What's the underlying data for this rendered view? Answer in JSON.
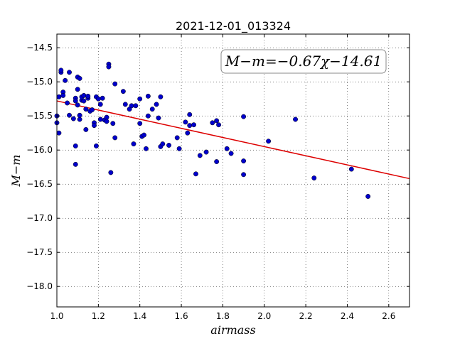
{
  "chart_data": {
    "type": "scatter",
    "title": "2021-12-01_013324",
    "xlabel": "airmass",
    "ylabel": "M−m",
    "xlim": [
      1.0,
      2.7
    ],
    "ylim": [
      -18.3,
      -14.3
    ],
    "y_inverted": true,
    "grid": true,
    "x_ticks": [
      "1.0",
      "1.2",
      "1.4",
      "1.6",
      "1.8",
      "2.0",
      "2.2",
      "2.4",
      "2.6"
    ],
    "y_ticks": [
      "−14.5",
      "−15.0",
      "−15.5",
      "−16.0",
      "−16.5",
      "−17.0",
      "−17.5",
      "−18.0"
    ],
    "annotation": "M−m=−0.67χ−14.61",
    "fit": {
      "slope": -0.67,
      "intercept": -14.61,
      "color": "#dd0000"
    },
    "point_color": "#0000cc",
    "points": [
      [
        1.0,
        -15.5
      ],
      [
        1.0,
        -15.6
      ],
      [
        1.01,
        -15.75
      ],
      [
        1.01,
        -15.22
      ],
      [
        1.02,
        -14.86
      ],
      [
        1.02,
        -14.83
      ],
      [
        1.03,
        -15.15
      ],
      [
        1.03,
        -15.2
      ],
      [
        1.04,
        -14.98
      ],
      [
        1.05,
        -15.31
      ],
      [
        1.06,
        -15.49
      ],
      [
        1.06,
        -14.86
      ],
      [
        1.08,
        -15.54
      ],
      [
        1.09,
        -15.24
      ],
      [
        1.09,
        -15.28
      ],
      [
        1.09,
        -15.94
      ],
      [
        1.09,
        -16.21
      ],
      [
        1.1,
        -15.11
      ],
      [
        1.1,
        -15.34
      ],
      [
        1.1,
        -14.93
      ],
      [
        1.11,
        -14.95
      ],
      [
        1.11,
        -15.55
      ],
      [
        1.11,
        -15.49
      ],
      [
        1.12,
        -15.27
      ],
      [
        1.12,
        -15.22
      ],
      [
        1.13,
        -15.2
      ],
      [
        1.13,
        -15.28
      ],
      [
        1.14,
        -15.4
      ],
      [
        1.14,
        -15.7
      ],
      [
        1.15,
        -15.24
      ],
      [
        1.15,
        -15.21
      ],
      [
        1.16,
        -15.43
      ],
      [
        1.17,
        -15.41
      ],
      [
        1.18,
        -15.6
      ],
      [
        1.18,
        -15.64
      ],
      [
        1.19,
        -15.22
      ],
      [
        1.19,
        -15.94
      ],
      [
        1.2,
        -15.25
      ],
      [
        1.21,
        -15.33
      ],
      [
        1.21,
        -15.55
      ],
      [
        1.22,
        -15.24
      ],
      [
        1.23,
        -15.56
      ],
      [
        1.24,
        -15.52
      ],
      [
        1.24,
        -15.58
      ],
      [
        1.25,
        -14.74
      ],
      [
        1.25,
        -14.78
      ],
      [
        1.26,
        -16.33
      ],
      [
        1.27,
        -15.61
      ],
      [
        1.28,
        -15.82
      ],
      [
        1.28,
        -15.03
      ],
      [
        1.32,
        -15.14
      ],
      [
        1.33,
        -15.33
      ],
      [
        1.35,
        -15.4
      ],
      [
        1.36,
        -15.35
      ],
      [
        1.37,
        -15.91
      ],
      [
        1.38,
        -15.35
      ],
      [
        1.4,
        -15.61
      ],
      [
        1.4,
        -15.25
      ],
      [
        1.41,
        -15.8
      ],
      [
        1.42,
        -15.78
      ],
      [
        1.43,
        -15.98
      ],
      [
        1.44,
        -15.21
      ],
      [
        1.44,
        -15.5
      ],
      [
        1.46,
        -15.4
      ],
      [
        1.48,
        -15.33
      ],
      [
        1.49,
        -15.53
      ],
      [
        1.5,
        -15.95
      ],
      [
        1.5,
        -15.22
      ],
      [
        1.51,
        -15.91
      ],
      [
        1.54,
        -15.93
      ],
      [
        1.58,
        -15.82
      ],
      [
        1.59,
        -15.98
      ],
      [
        1.62,
        -15.59
      ],
      [
        1.63,
        -15.75
      ],
      [
        1.64,
        -15.64
      ],
      [
        1.64,
        -15.48
      ],
      [
        1.66,
        -15.63
      ],
      [
        1.67,
        -16.35
      ],
      [
        1.69,
        -16.08
      ],
      [
        1.72,
        -16.03
      ],
      [
        1.75,
        -15.6
      ],
      [
        1.77,
        -15.57
      ],
      [
        1.77,
        -16.17
      ],
      [
        1.78,
        -15.63
      ],
      [
        1.82,
        -15.98
      ],
      [
        1.84,
        -16.05
      ],
      [
        1.9,
        -15.51
      ],
      [
        1.9,
        -16.16
      ],
      [
        1.9,
        -16.36
      ],
      [
        2.02,
        -15.87
      ],
      [
        2.15,
        -15.55
      ],
      [
        2.24,
        -16.41
      ],
      [
        2.42,
        -16.28
      ],
      [
        2.5,
        -16.68
      ]
    ]
  }
}
